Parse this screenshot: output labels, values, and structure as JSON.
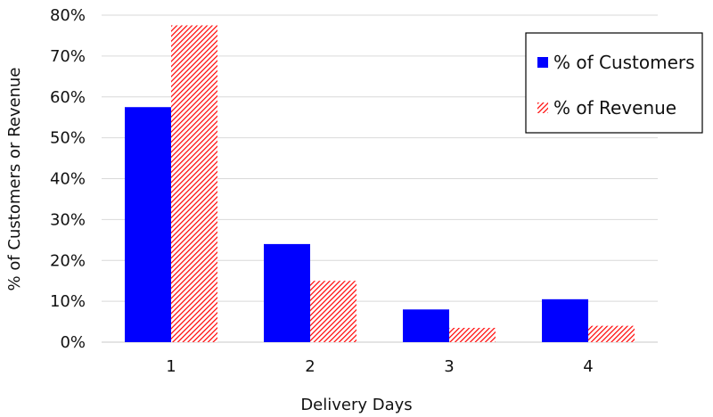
{
  "chart_data": {
    "type": "bar",
    "categories": [
      "1",
      "2",
      "3",
      "4"
    ],
    "series": [
      {
        "name": "% of Customers",
        "values": [
          57.5,
          24,
          8,
          10.5
        ],
        "color": "#0000ff",
        "fill": "solid"
      },
      {
        "name": "% of Revenue",
        "values": [
          77.5,
          15,
          3.5,
          4
        ],
        "color": "#ff0000",
        "fill": "diagonal-hatch"
      }
    ],
    "title": "",
    "xlabel": "Delivery Days",
    "ylabel": "% of Customers or Revenue",
    "ylim": [
      0,
      80
    ],
    "yticks": [
      0,
      10,
      20,
      30,
      40,
      50,
      60,
      70,
      80
    ],
    "ytick_labels": [
      "0%",
      "10%",
      "20%",
      "30%",
      "40%",
      "50%",
      "60%",
      "70%",
      "80%"
    ],
    "grid": true,
    "legend_position": "top-right"
  }
}
